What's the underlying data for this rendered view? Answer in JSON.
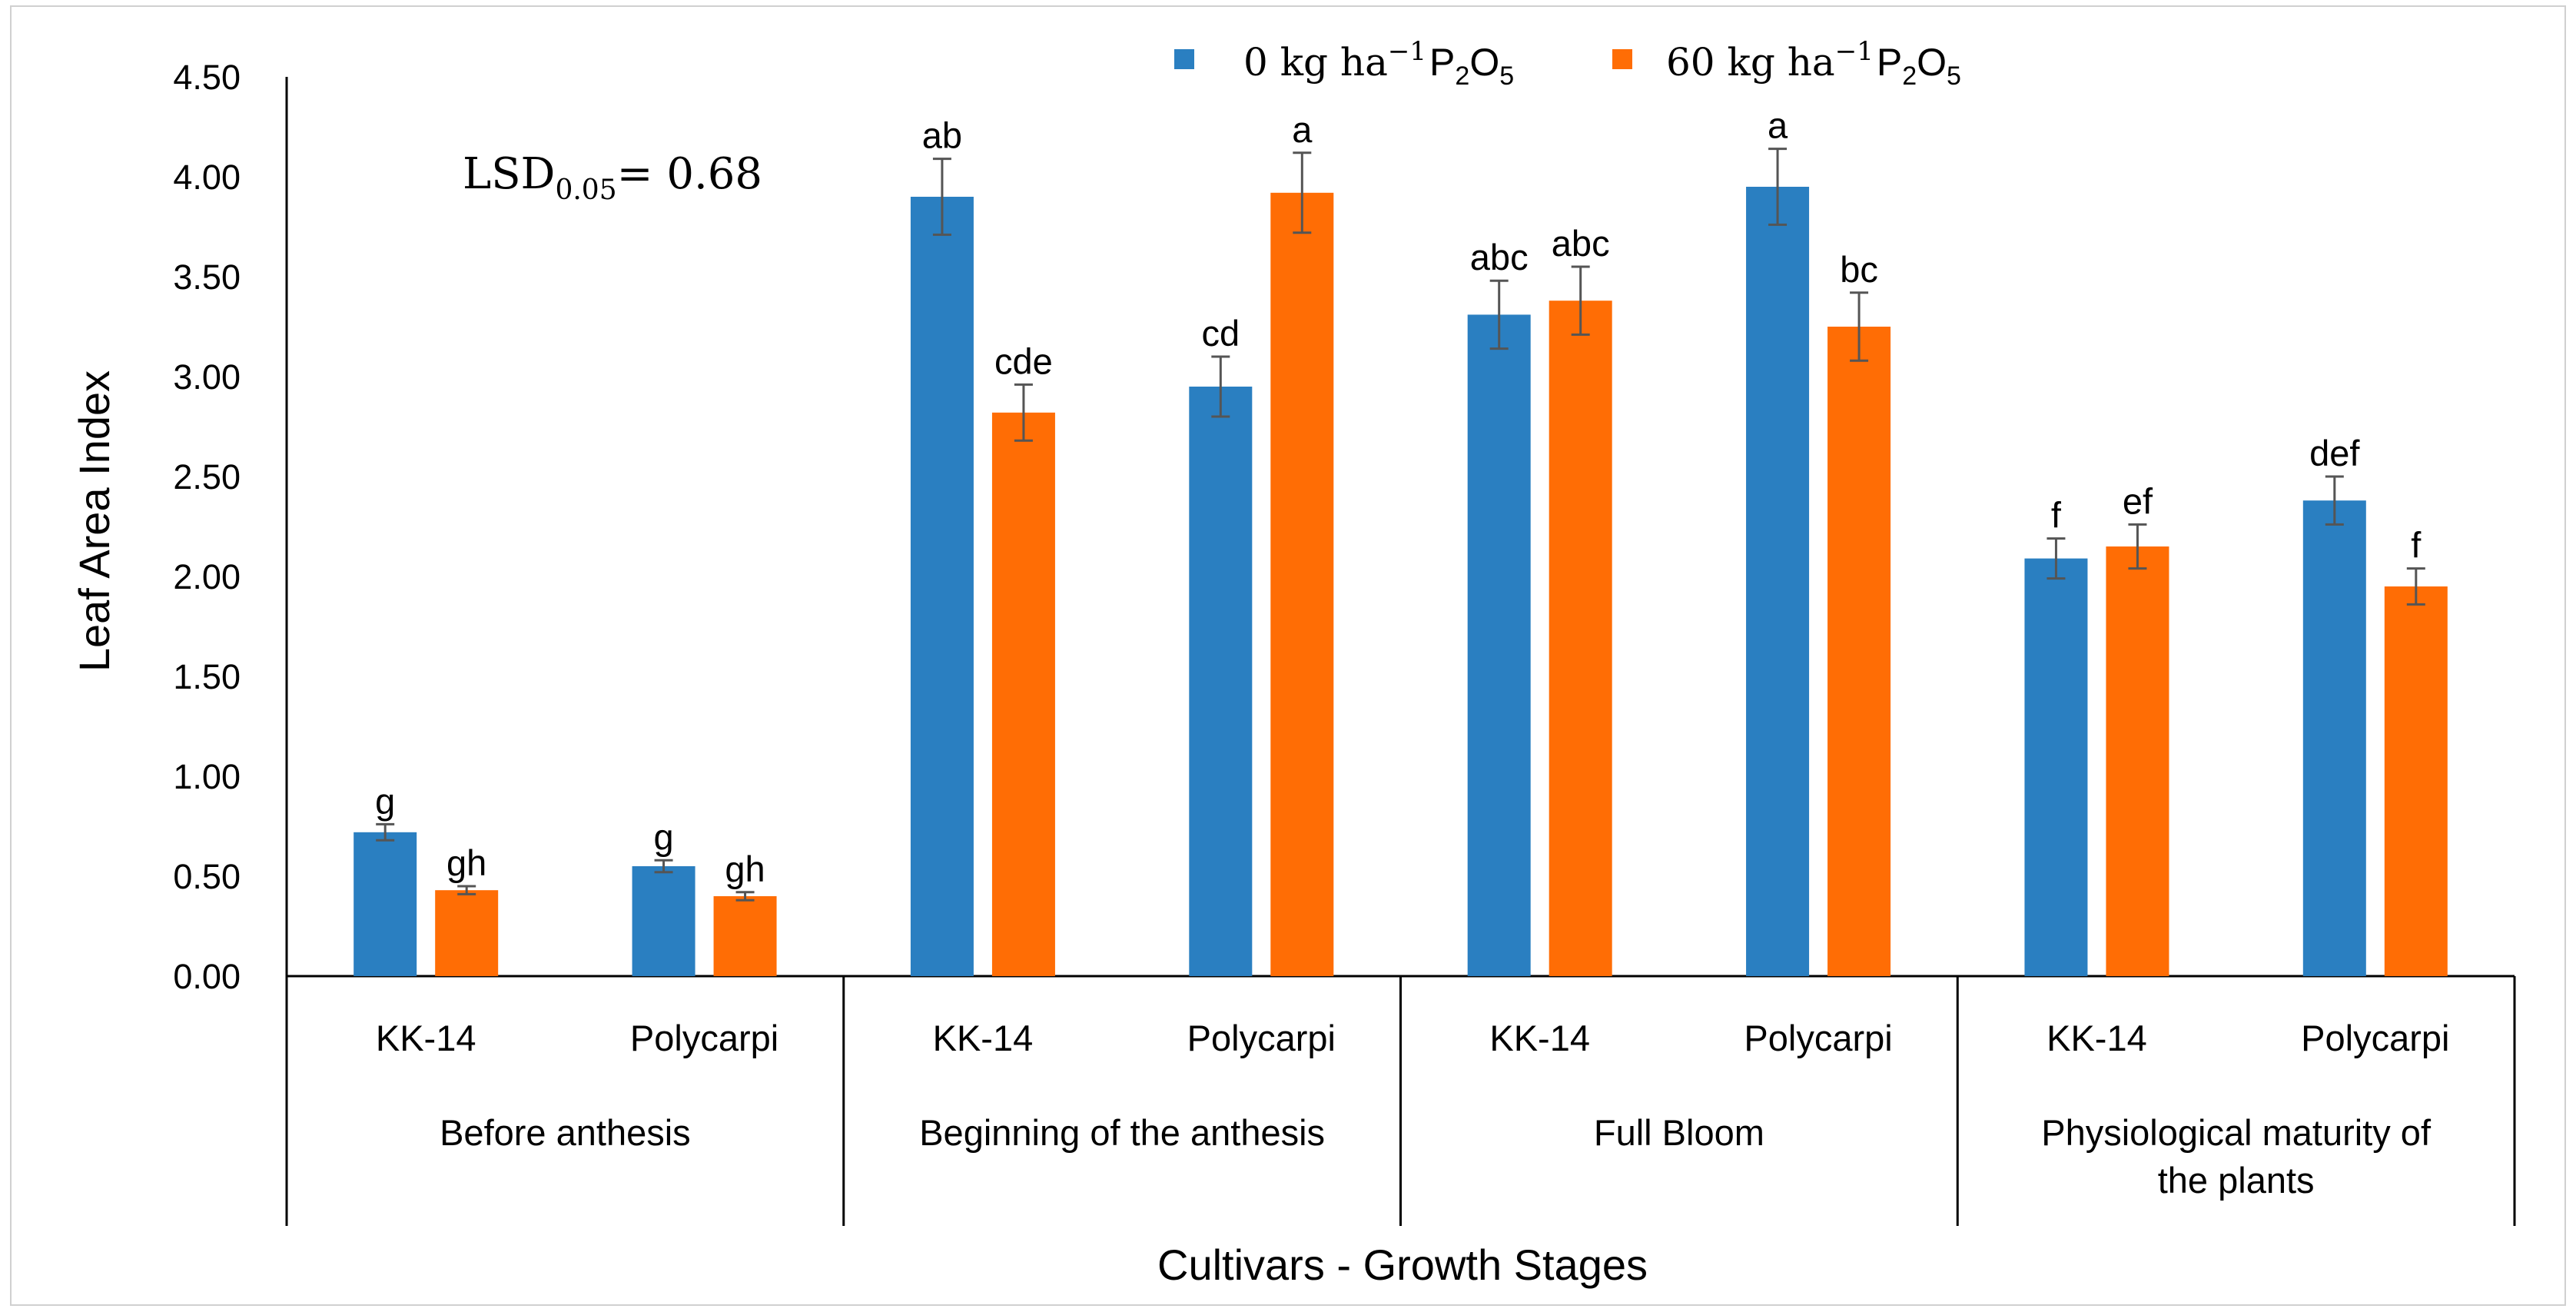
{
  "chart_data": {
    "type": "bar",
    "title": "",
    "ylabel": "Leaf Area Index",
    "xlabel": "Cultivars - Growth Stages",
    "ylim": [
      0,
      4.5
    ],
    "ytick_step": 0.5,
    "yticks": [
      "0.00",
      "0.50",
      "1.00",
      "1.50",
      "2.00",
      "2.50",
      "3.00",
      "3.50",
      "4.00",
      "4.50"
    ],
    "groups": [
      {
        "label_lines": [
          "Before anthesis"
        ],
        "cultivars": [
          "KK-14",
          "Polycarpi"
        ]
      },
      {
        "label_lines": [
          "Beginning of the anthesis"
        ],
        "cultivars": [
          "KK-14",
          "Polycarpi"
        ]
      },
      {
        "label_lines": [
          "Full Bloom"
        ],
        "cultivars": [
          "KK-14",
          "Polycarpi"
        ]
      },
      {
        "label_lines": [
          "Physiological maturity of",
          "the plants"
        ],
        "cultivars": [
          "KK-14",
          "Polycarpi"
        ]
      }
    ],
    "series": [
      {
        "name": "0 kg ha⁻¹ P₂O₅",
        "legend_main": "0 kg ha",
        "legend_sup": "−1",
        "legend_rest": "P",
        "legend_sub1": "2",
        "legend_o": "O",
        "legend_sub2": "5",
        "color": "#2a7fc1",
        "values": [
          0.72,
          0.55,
          3.9,
          2.95,
          3.31,
          3.95,
          2.09,
          2.38
        ],
        "errors": [
          0.04,
          0.03,
          0.19,
          0.15,
          0.17,
          0.19,
          0.1,
          0.12
        ],
        "labels": [
          "g",
          "g",
          "ab",
          "cd",
          "abc",
          "a",
          "f",
          "def"
        ]
      },
      {
        "name": "60 kg ha⁻¹ P₂O₅",
        "legend_main": "60 kg ha",
        "legend_sup": "−1",
        "legend_rest": "P",
        "legend_sub1": "2",
        "legend_o": "O",
        "legend_sub2": "5",
        "color": "#ff6d05",
        "values": [
          0.43,
          0.4,
          2.82,
          3.92,
          3.38,
          3.25,
          2.15,
          1.95
        ],
        "errors": [
          0.02,
          0.02,
          0.14,
          0.2,
          0.17,
          0.17,
          0.11,
          0.09
        ],
        "labels": [
          "gh",
          "gh",
          "cde",
          "a",
          "abc",
          "bc",
          "ef",
          "f"
        ]
      }
    ],
    "annotation": {
      "prefix": "LSD",
      "sub": "0.05",
      "suffix": "= 0.68"
    }
  }
}
